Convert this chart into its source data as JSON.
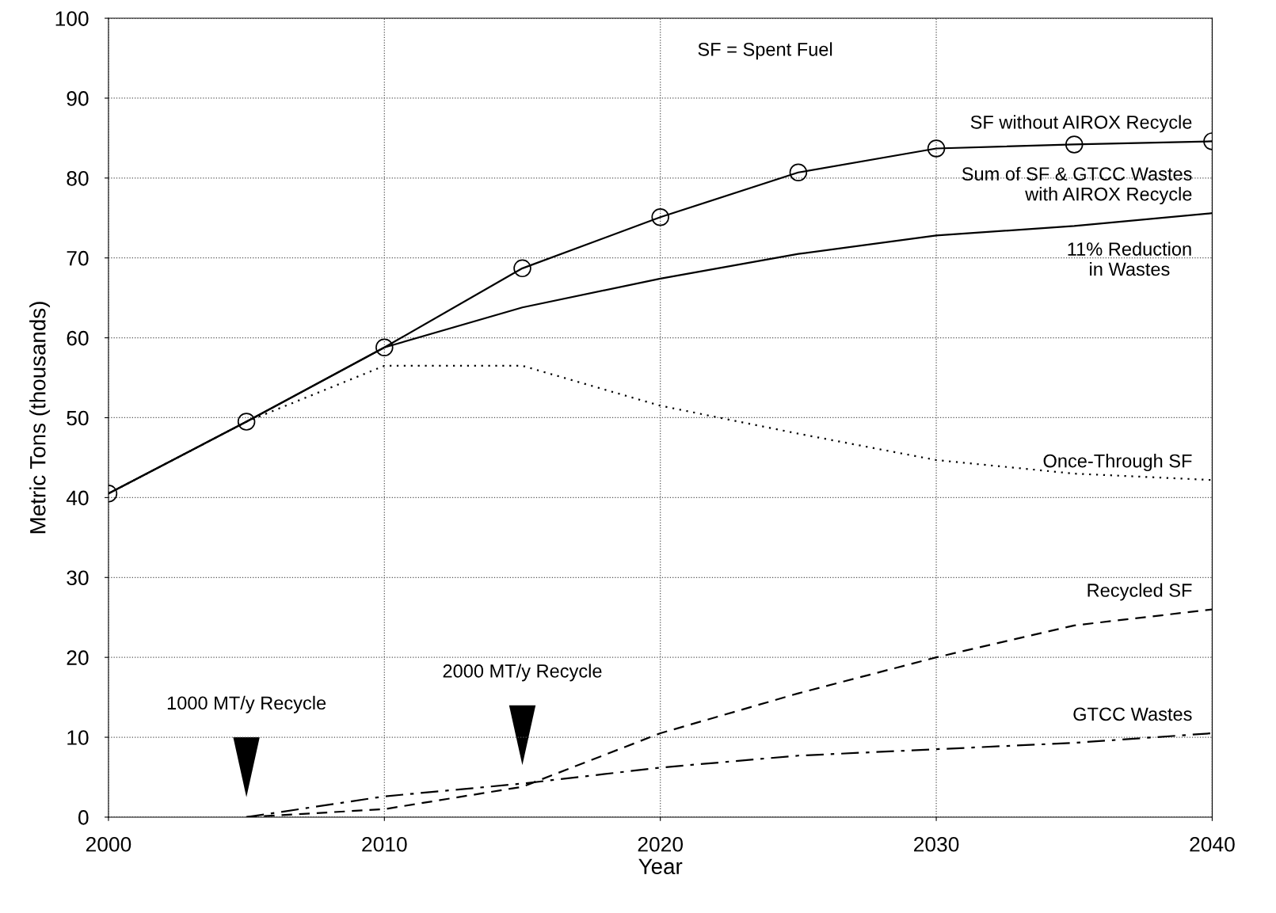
{
  "chart_data": {
    "type": "line",
    "xlabel": "Year",
    "ylabel": "Metric Tons (thousands)",
    "xlim": [
      2000,
      2040
    ],
    "xticks": [
      2000,
      2010,
      2020,
      2030,
      2040
    ],
    "ylim": [
      0,
      100
    ],
    "yticks": [
      0,
      10,
      20,
      30,
      40,
      50,
      60,
      70,
      80,
      90,
      100
    ],
    "grid": true,
    "legend": false,
    "series": [
      {
        "name": "SF without AIROX Recycle",
        "color": "#000000",
        "marker": "circle",
        "line_style": "solid",
        "x": [
          2000,
          2005,
          2010,
          2015,
          2020,
          2025,
          2030,
          2035,
          2040
        ],
        "values": [
          40.5,
          49.5,
          58.8,
          68.7,
          75.1,
          80.7,
          83.7,
          84.2,
          84.6
        ]
      },
      {
        "name": "Sum of SF & GTCC Wastes\nwith AIROX Recycle",
        "color": "#000000",
        "line_style": "solid",
        "x": [
          2000,
          2005,
          2010,
          2015,
          2020,
          2025,
          2030,
          2035,
          2040
        ],
        "values": [
          40.5,
          49.5,
          58.8,
          63.8,
          67.4,
          70.5,
          72.8,
          74.0,
          75.6
        ]
      },
      {
        "name": "Once-Through SF",
        "color": "#000000",
        "line_style": "dotted",
        "x": [
          2000,
          2005,
          2010,
          2015,
          2020,
          2025,
          2030,
          2035,
          2040
        ],
        "values": [
          40.5,
          49.5,
          56.5,
          56.5,
          51.5,
          48.0,
          44.7,
          43.0,
          42.2
        ]
      },
      {
        "name": "Recycled SF",
        "color": "#000000",
        "line_style": "dashed",
        "x": [
          2005,
          2010,
          2015,
          2020,
          2025,
          2030,
          2035,
          2040
        ],
        "values": [
          0,
          1,
          3.8,
          10.5,
          15.5,
          20,
          24,
          26
        ]
      },
      {
        "name": "GTCC Wastes",
        "color": "#000000",
        "line_style": "dashdot",
        "x": [
          2005,
          2010,
          2015,
          2020,
          2025,
          2030,
          2035,
          2040
        ],
        "values": [
          0,
          2.6,
          4.2,
          6.2,
          7.7,
          8.5,
          9.3,
          10.5
        ]
      }
    ],
    "annotations": [
      "SF = Spent Fuel",
      "11% Reduction\nin Wastes",
      "1000 MT/y Recycle",
      "2000 MT/y Recycle"
    ]
  }
}
